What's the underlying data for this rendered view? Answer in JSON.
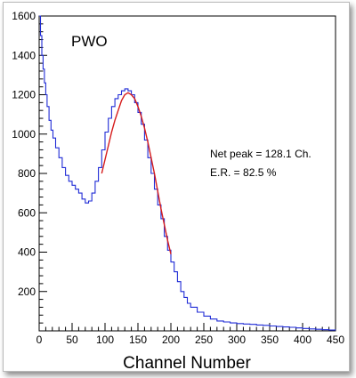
{
  "chart_data": {
    "type": "line",
    "title": "PWO",
    "xlabel": "Channel Number",
    "ylabel": "",
    "xlim": [
      0,
      450
    ],
    "ylim": [
      0,
      1600
    ],
    "x_ticks": [
      0,
      50,
      100,
      150,
      200,
      250,
      300,
      350,
      400,
      450
    ],
    "y_ticks": [
      200,
      400,
      600,
      800,
      1000,
      1200,
      1400,
      1600
    ],
    "grid": false,
    "annotations": [
      "Net peak =  128.1 Ch.",
      "E.R. = 82.5 %"
    ],
    "series": [
      {
        "color": "#1f2bd6",
        "x": [
          0,
          2,
          4,
          6,
          8,
          10,
          12,
          15,
          18,
          21,
          25,
          30,
          35,
          40,
          45,
          50,
          55,
          60,
          65,
          70,
          75,
          80,
          85,
          90,
          95,
          100,
          105,
          110,
          115,
          120,
          125,
          130,
          135,
          140,
          145,
          150,
          155,
          160,
          165,
          170,
          175,
          180,
          185,
          190,
          195,
          200,
          205,
          210,
          215,
          220,
          225,
          230,
          240,
          250,
          260,
          270,
          280,
          290,
          300,
          310,
          320,
          330,
          340,
          350,
          360,
          370,
          380,
          390,
          400,
          410,
          420,
          430,
          440,
          450
        ],
        "y": [
          1600,
          1500,
          1400,
          1330,
          1260,
          1200,
          1140,
          1070,
          1020,
          980,
          930,
          880,
          830,
          790,
          760,
          740,
          720,
          700,
          670,
          650,
          660,
          700,
          760,
          830,
          920,
          1010,
          1080,
          1140,
          1180,
          1200,
          1220,
          1230,
          1220,
          1200,
          1160,
          1110,
          1050,
          970,
          880,
          800,
          720,
          640,
          570,
          480,
          410,
          350,
          300,
          250,
          200,
          170,
          140,
          120,
          95,
          75,
          60,
          50,
          45,
          40,
          37,
          35,
          33,
          30,
          28,
          25,
          22,
          20,
          18,
          15,
          12,
          10,
          8,
          6,
          4,
          3
        ]
      },
      {
        "color": "#d61c1c",
        "x": [
          95,
          100,
          105,
          110,
          115,
          120,
          125,
          130,
          135,
          140,
          145,
          150,
          155,
          160,
          165,
          170,
          175,
          180,
          185,
          190,
          195,
          200
        ],
        "y": [
          800,
          870,
          940,
          1010,
          1070,
          1120,
          1170,
          1200,
          1210,
          1200,
          1180,
          1140,
          1090,
          1030,
          960,
          880,
          800,
          710,
          620,
          540,
          460,
          390
        ]
      }
    ]
  }
}
